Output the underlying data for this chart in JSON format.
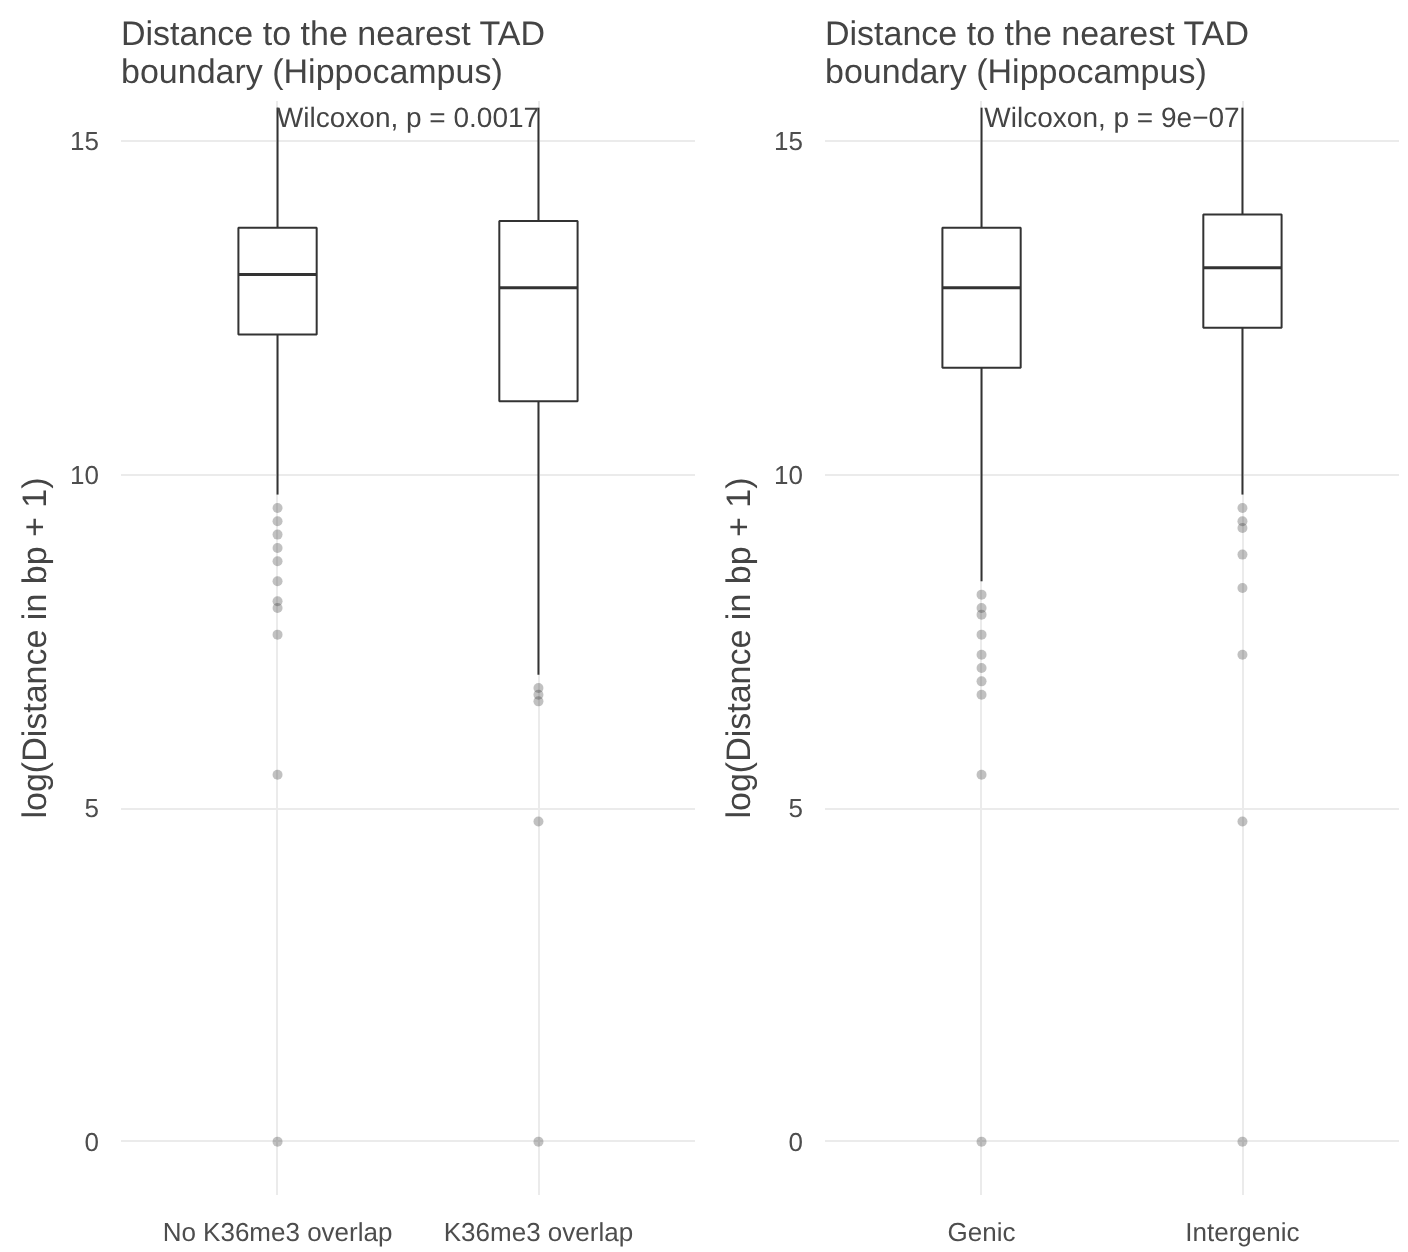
{
  "chart_data": [
    {
      "type": "box",
      "title": "Distance to the nearest TAD boundary (Hippocampus)",
      "ylabel": "log(Distance in bp + 1)",
      "categories": [
        "No K36me3 overlap",
        "K36me3 overlap"
      ],
      "boxes": [
        {
          "low": 9.7,
          "q1": 12.1,
          "median": 13.0,
          "q3": 13.7,
          "high": 15.5,
          "outliers": [
            9.5,
            9.3,
            9.1,
            8.9,
            8.7,
            8.4,
            8.1,
            8.0,
            7.6,
            5.5,
            0
          ]
        },
        {
          "low": 7.0,
          "q1": 11.1,
          "median": 12.8,
          "q3": 13.8,
          "high": 15.5,
          "outliers": [
            6.8,
            6.7,
            6.6,
            4.8,
            0
          ]
        }
      ],
      "ylim": [
        -0.8,
        15.6
      ],
      "yticks": [
        0,
        5,
        10,
        15
      ],
      "grid": true,
      "annotations": [
        "Wilcoxon, p = 0.0017"
      ]
    },
    {
      "type": "box",
      "title": "Distance to the nearest TAD boundary (Hippocampus)",
      "ylabel": "log(Distance in bp + 1)",
      "categories": [
        "Genic",
        "Intergenic"
      ],
      "boxes": [
        {
          "low": 8.4,
          "q1": 11.6,
          "median": 12.8,
          "q3": 13.7,
          "high": 15.5,
          "outliers": [
            8.2,
            8.0,
            7.9,
            7.6,
            7.3,
            7.1,
            6.9,
            6.7,
            5.5,
            0
          ]
        },
        {
          "low": 9.7,
          "q1": 12.2,
          "median": 13.1,
          "q3": 13.9,
          "high": 15.5,
          "outliers": [
            9.5,
            9.3,
            9.2,
            8.8,
            8.3,
            7.3,
            4.8,
            0
          ]
        }
      ],
      "ylim": [
        -0.8,
        15.6
      ],
      "yticks": [
        0,
        5,
        10,
        15
      ],
      "grid": true,
      "annotations": [
        "Wilcoxon, p = 9e−07"
      ]
    }
  ]
}
